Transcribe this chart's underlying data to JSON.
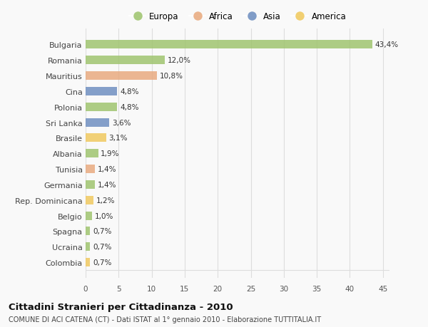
{
  "countries": [
    "Bulgaria",
    "Romania",
    "Mauritius",
    "Cina",
    "Polonia",
    "Sri Lanka",
    "Brasile",
    "Albania",
    "Tunisia",
    "Germania",
    "Rep. Dominicana",
    "Belgio",
    "Spagna",
    "Ucraina",
    "Colombia"
  ],
  "values": [
    43.4,
    12.0,
    10.8,
    4.8,
    4.8,
    3.6,
    3.1,
    1.9,
    1.4,
    1.4,
    1.2,
    1.0,
    0.7,
    0.7,
    0.7
  ],
  "labels": [
    "43,4%",
    "12,0%",
    "10,8%",
    "4,8%",
    "4,8%",
    "3,6%",
    "3,1%",
    "1,9%",
    "1,4%",
    "1,4%",
    "1,2%",
    "1,0%",
    "0,7%",
    "0,7%",
    "0,7%"
  ],
  "continents": [
    "Europa",
    "Europa",
    "Africa",
    "Asia",
    "Europa",
    "Asia",
    "America",
    "Europa",
    "Africa",
    "Europa",
    "America",
    "Europa",
    "Europa",
    "Europa",
    "America"
  ],
  "continent_colors": {
    "Europa": "#9dc36b",
    "Africa": "#e8a87c",
    "Asia": "#6b8cbf",
    "America": "#f0c85a"
  },
  "legend_order": [
    "Europa",
    "Africa",
    "Asia",
    "America"
  ],
  "title": "Cittadini Stranieri per Cittadinanza - 2010",
  "subtitle": "COMUNE DI ACI CATENA (CT) - Dati ISTAT al 1° gennaio 2010 - Elaborazione TUTTITALIA.IT",
  "xlim": [
    0,
    46
  ],
  "xticks": [
    0,
    5,
    10,
    15,
    20,
    25,
    30,
    35,
    40,
    45
  ],
  "background_color": "#f9f9f9",
  "grid_color": "#dddddd"
}
